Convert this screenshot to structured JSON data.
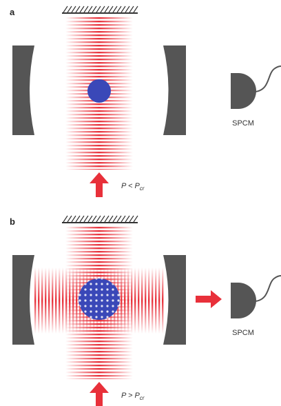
{
  "panels": [
    {
      "label": "a",
      "detector": "SPCM",
      "condition": {
        "text": "P < P",
        "subscript": "cr"
      }
    },
    {
      "label": "b",
      "detector": "SPCM",
      "condition": {
        "text": "P > P",
        "subscript": "cr"
      }
    }
  ]
}
